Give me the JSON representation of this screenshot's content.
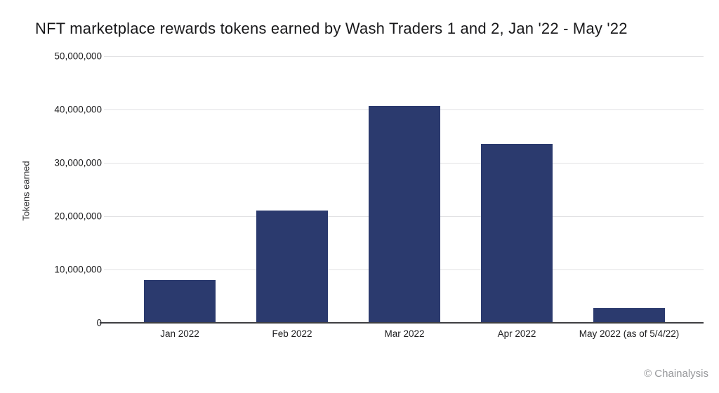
{
  "page": {
    "credit": "© Chainalysis"
  },
  "chart_data": {
    "type": "bar",
    "title": "NFT marketplace rewards tokens earned by Wash Traders 1 and 2, Jan '22 - May '22",
    "categories": [
      "Jan 2022",
      "Feb 2022",
      "Mar 2022",
      "Apr 2022",
      "May 2022 (as of 5/4/22)"
    ],
    "values": [
      8000000,
      21000000,
      40700000,
      33600000,
      2800000
    ],
    "xlabel": "",
    "ylabel": "Tokens earned",
    "ylim": [
      0,
      50000000
    ],
    "yticks": [
      0,
      10000000,
      20000000,
      30000000,
      40000000,
      50000000
    ],
    "ytick_labels": [
      "0",
      "10,000,000",
      "20,000,000",
      "30,000,000",
      "40,000,000",
      "50,000,000"
    ],
    "grid": "horizontal-only",
    "legend": "none",
    "bar_color": "#2b3a6e",
    "gridline_color": "#e2e2e4",
    "axis_line_color": "#3f3f42"
  }
}
